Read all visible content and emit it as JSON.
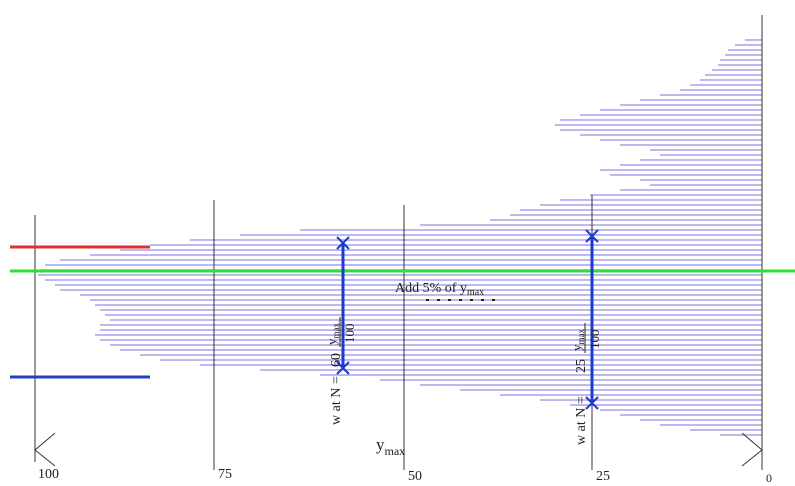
{
  "axis": {
    "ticks": [
      "100",
      "75",
      "50",
      "25",
      "0"
    ],
    "label": {
      "base": "y",
      "sub": "max"
    }
  },
  "note": {
    "text": "Add  5% of y",
    "sub": "max"
  },
  "markers": [
    {
      "prefix": "w at N =",
      "factor": "60",
      "base": "y",
      "sub": "max",
      "denominator": "100"
    },
    {
      "prefix": "w at N =",
      "factor": "25",
      "base": "y",
      "sub": "max",
      "denominator": "100"
    }
  ]
}
